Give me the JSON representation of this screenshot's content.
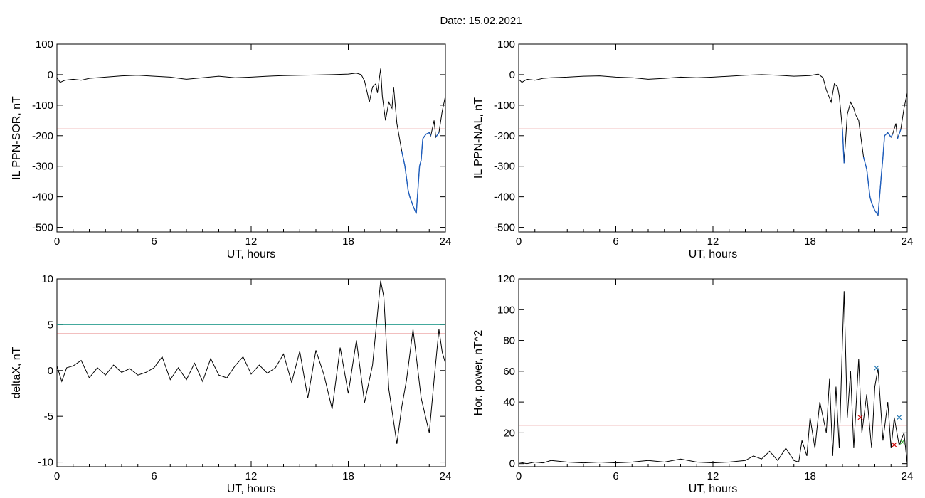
{
  "title": "Date:  15.02.2021",
  "chart_data": [
    {
      "type": "line",
      "xlabel": "UT, hours",
      "ylabel": "IL PPN-SOR, nT",
      "xlim": [
        0,
        24
      ],
      "ylim": [
        -515,
        100
      ],
      "xticks": [
        0,
        6,
        12,
        18,
        24
      ],
      "yticks": [
        100,
        0,
        -100,
        -200,
        -300,
        -400,
        -500
      ],
      "threshold_lines": [
        {
          "y": -178,
          "color": "#cc0000"
        }
      ],
      "highlight": {
        "color": "#1f5fbf",
        "below": -178
      },
      "series": [
        {
          "color": "#000000",
          "x": [
            0,
            0.2,
            0.5,
            1,
            1.5,
            2,
            3,
            4,
            5,
            6,
            7,
            8,
            9,
            10,
            11,
            12,
            13,
            14,
            15,
            16,
            17,
            18,
            18.5,
            18.8,
            19,
            19.3,
            19.5,
            19.7,
            19.8,
            20,
            20.1,
            20.3,
            20.5,
            20.7,
            20.8,
            21,
            21.3,
            21.5,
            21.7,
            21.8,
            22,
            22.2,
            22.4,
            22.5,
            22.6,
            22.8,
            23,
            23.1,
            23.3,
            23.4,
            23.6,
            23.8,
            24
          ],
          "y": [
            -10,
            -25,
            -18,
            -15,
            -18,
            -12,
            -8,
            -4,
            -2,
            -5,
            -8,
            -15,
            -10,
            -5,
            -10,
            -8,
            -5,
            -3,
            -2,
            -1,
            0,
            2,
            5,
            0,
            -20,
            -90,
            -40,
            -30,
            -60,
            20,
            -70,
            -150,
            -90,
            -110,
            -40,
            -160,
            -250,
            -300,
            -380,
            -400,
            -430,
            -455,
            -300,
            -280,
            -210,
            -195,
            -190,
            -200,
            -150,
            -205,
            -190,
            -120,
            -70
          ]
        }
      ]
    },
    {
      "type": "line",
      "xlabel": "UT, hours",
      "ylabel": "IL PPN-NAL, nT",
      "xlim": [
        0,
        24
      ],
      "ylim": [
        -515,
        100
      ],
      "xticks": [
        0,
        6,
        12,
        18,
        24
      ],
      "yticks": [
        100,
        0,
        -100,
        -200,
        -300,
        -400,
        -500
      ],
      "threshold_lines": [
        {
          "y": -178,
          "color": "#cc0000"
        }
      ],
      "highlight": {
        "color": "#1f5fbf",
        "below": -178
      },
      "series": [
        {
          "color": "#000000",
          "x": [
            0,
            0.2,
            0.5,
            1,
            1.5,
            2,
            3,
            4,
            5,
            6,
            7,
            8,
            9,
            10,
            11,
            12,
            13,
            14,
            15,
            16,
            17,
            18,
            18.5,
            18.8,
            19,
            19.3,
            19.5,
            19.7,
            19.8,
            20,
            20.1,
            20.3,
            20.5,
            20.7,
            20.8,
            21,
            21.3,
            21.5,
            21.7,
            21.8,
            22,
            22.2,
            22.4,
            22.5,
            22.6,
            22.8,
            23,
            23.1,
            23.3,
            23.4,
            23.6,
            23.8,
            24
          ],
          "y": [
            -15,
            -25,
            -15,
            -18,
            -12,
            -10,
            -8,
            -5,
            -4,
            -8,
            -10,
            -15,
            -12,
            -8,
            -10,
            -8,
            -5,
            -2,
            0,
            -2,
            -5,
            -3,
            2,
            -10,
            -50,
            -90,
            -30,
            -40,
            -70,
            -180,
            -290,
            -130,
            -90,
            -110,
            -130,
            -150,
            -270,
            -310,
            -400,
            -420,
            -445,
            -460,
            -330,
            -270,
            -200,
            -190,
            -205,
            -195,
            -160,
            -210,
            -180,
            -110,
            -60
          ]
        }
      ]
    },
    {
      "type": "line",
      "xlabel": "UT, hours",
      "ylabel": "deltaX, nT",
      "xlim": [
        0,
        24
      ],
      "ylim": [
        -10.5,
        10
      ],
      "xticks": [
        0,
        6,
        12,
        18,
        24
      ],
      "yticks": [
        10,
        5,
        0,
        -5,
        -10
      ],
      "threshold_lines": [
        {
          "y": 5,
          "color": "#2a9d8f"
        },
        {
          "y": 4,
          "color": "#cc0000"
        }
      ],
      "series": [
        {
          "color": "#000000",
          "x": [
            0,
            0.3,
            0.6,
            1,
            1.5,
            2,
            2.5,
            3,
            3.5,
            4,
            4.5,
            5,
            5.5,
            6,
            6.5,
            7,
            7.5,
            8,
            8.5,
            9,
            9.5,
            10,
            10.5,
            11,
            11.5,
            12,
            12.5,
            13,
            13.5,
            14,
            14.5,
            15,
            15.5,
            16,
            16.5,
            17,
            17.5,
            18,
            18.5,
            19,
            19.5,
            20,
            20.2,
            20.5,
            21,
            21.3,
            21.6,
            22,
            22.5,
            23,
            23.3,
            23.6,
            23.8,
            24
          ],
          "y": [
            0.5,
            -1.2,
            0.3,
            0.5,
            1.1,
            -0.8,
            0.3,
            -0.5,
            0.6,
            -0.2,
            0.2,
            -0.5,
            -0.2,
            0.3,
            1.5,
            -1,
            0.3,
            -1,
            0.8,
            -1.2,
            1.3,
            -0.5,
            -0.8,
            0.5,
            1.5,
            -0.4,
            0.6,
            -0.3,
            0.3,
            1.8,
            -1.3,
            2.1,
            -3,
            2.2,
            -0.5,
            -4.2,
            2.5,
            -2.5,
            3.3,
            -3.5,
            0.6,
            9.8,
            8,
            -2,
            -8,
            -4,
            -1,
            4.5,
            -3,
            -6.8,
            -1,
            4.5,
            2,
            0.8
          ]
        }
      ]
    },
    {
      "type": "line",
      "xlabel": "UT, hours",
      "ylabel": "Hor. power, nT^2",
      "xlim": [
        0,
        24
      ],
      "ylim": [
        -2,
        120
      ],
      "xticks": [
        0,
        6,
        12,
        18,
        24
      ],
      "yticks": [
        120,
        100,
        80,
        60,
        40,
        20,
        0
      ],
      "threshold_lines": [
        {
          "y": 25,
          "color": "#cc0000"
        }
      ],
      "series": [
        {
          "color": "#000000",
          "x": [
            0,
            0.5,
            1,
            1.5,
            2,
            3,
            4,
            5,
            6,
            7,
            8,
            9,
            10,
            11,
            12,
            13,
            14,
            14.5,
            15,
            15.5,
            16,
            16.5,
            17,
            17.3,
            17.5,
            17.8,
            18,
            18.3,
            18.6,
            19,
            19.2,
            19.4,
            19.6,
            19.8,
            20,
            20.1,
            20.3,
            20.5,
            20.7,
            21,
            21.2,
            21.5,
            21.8,
            22,
            22.2,
            22.5,
            22.8,
            23,
            23.2,
            23.5,
            23.8,
            24
          ],
          "y": [
            1,
            0,
            1,
            0.5,
            2,
            1,
            0.5,
            1,
            0.5,
            1,
            2,
            1,
            3,
            1,
            0.5,
            1,
            2,
            5,
            3,
            8,
            2,
            10,
            2,
            1,
            15,
            5,
            30,
            10,
            40,
            20,
            55,
            5,
            50,
            10,
            80,
            112,
            30,
            60,
            10,
            68,
            20,
            45,
            10,
            50,
            62,
            15,
            40,
            10,
            30,
            12,
            20,
            0
          ]
        }
      ],
      "markers": [
        {
          "x": 21.1,
          "y": 30,
          "symbol": "×",
          "color": "#cc0000"
        },
        {
          "x": 22.1,
          "y": 62,
          "symbol": "×",
          "color": "#1f77b4"
        },
        {
          "x": 23.5,
          "y": 30,
          "symbol": "×",
          "color": "#1f77b4"
        },
        {
          "x": 23.2,
          "y": 12,
          "symbol": "×",
          "color": "#cc0000"
        },
        {
          "x": 23.7,
          "y": 14,
          "symbol": "×",
          "color": "#2ca02c"
        }
      ]
    }
  ]
}
